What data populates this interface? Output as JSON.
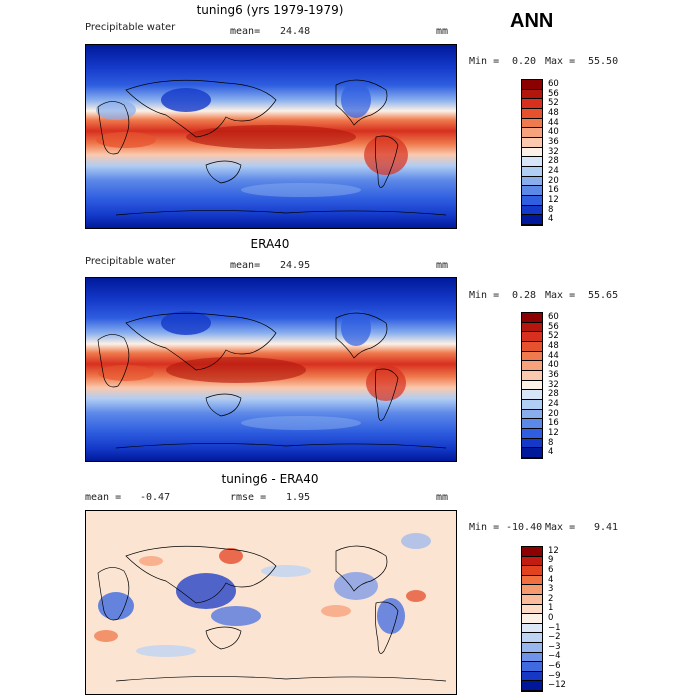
{
  "season": "ANN",
  "panels": [
    {
      "id": "model",
      "title": "tuning6 (yrs 1979-1979)",
      "variable": "Precipitable water",
      "mean_label": "mean=",
      "mean_value": "24.48",
      "units": "mm",
      "min_label": "Min =",
      "min_value": "0.20",
      "max_label": "Max =",
      "max_value": "55.50",
      "colorbar": [
        "60",
        "56",
        "52",
        "48",
        "44",
        "40",
        "36",
        "32",
        "28",
        "24",
        "20",
        "16",
        "12",
        "8",
        "4"
      ]
    },
    {
      "id": "obs",
      "title": "ERA40",
      "variable": "Precipitable water",
      "mean_label": "mean=",
      "mean_value": "24.95",
      "units": "mm",
      "min_label": "Min =",
      "min_value": "0.28",
      "max_label": "Max =",
      "max_value": "55.65",
      "colorbar": [
        "60",
        "56",
        "52",
        "48",
        "44",
        "40",
        "36",
        "32",
        "28",
        "24",
        "20",
        "16",
        "12",
        "8",
        "4"
      ]
    },
    {
      "id": "diff",
      "title": "tuning6 - ERA40",
      "mean_label": "mean =",
      "mean_value": "-0.47",
      "rmse_label": "rmse =",
      "rmse_value": "1.95",
      "units": "mm",
      "min_label": "Min =",
      "min_value": "-10.40",
      "max_label": "Max =",
      "max_value": "9.41",
      "colorbar": [
        "12",
        "9",
        "6",
        "4",
        "3",
        "2",
        "1",
        "0",
        "−1",
        "−2",
        "−3",
        "−4",
        "−6",
        "−9",
        "−12"
      ]
    }
  ],
  "colors": {
    "abs_scale": [
      "#8b0000",
      "#b3160c",
      "#d7301f",
      "#e5522d",
      "#ef7a4d",
      "#f6a27c",
      "#fac9ae",
      "#fbf1e6",
      "#d7e5f8",
      "#b0cdf3",
      "#88aeee",
      "#5c88e8",
      "#2f5ee0",
      "#1439c9",
      "#00199a"
    ],
    "diff_scale": [
      "#8b0000",
      "#c21b10",
      "#e3421f",
      "#f07040",
      "#f69a70",
      "#fabd9c",
      "#fcdcc6",
      "#fbf1e6",
      "#dce8f8",
      "#bfd3f2",
      "#97b7ee",
      "#6f93e8",
      "#3f6ae0",
      "#1638c5",
      "#00179a"
    ]
  }
}
